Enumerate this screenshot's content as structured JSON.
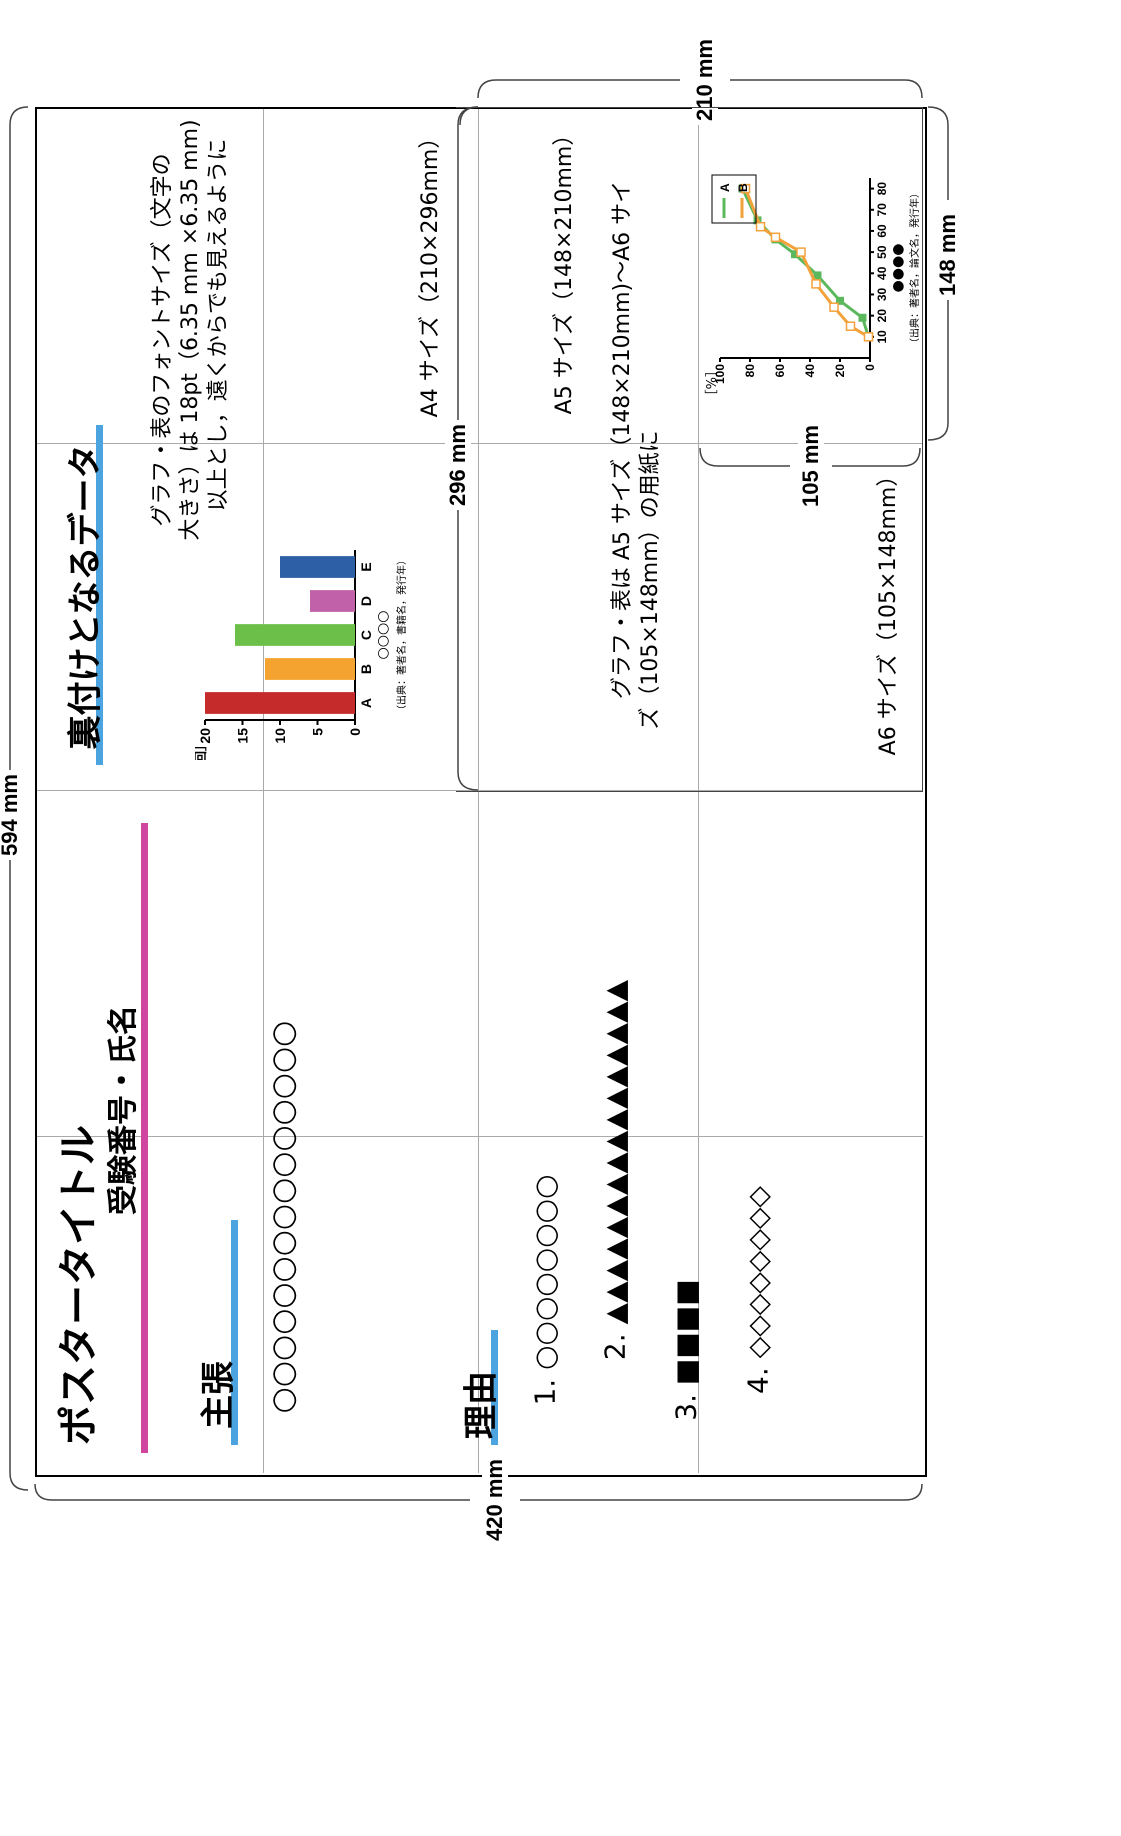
{
  "dimensions": {
    "poster_long": "420 mm",
    "poster_short": "594 mm",
    "a4_long": "296 mm",
    "a4_short": "210 mm",
    "a5_short": "148 mm",
    "a6_short": "105 mm"
  },
  "poster": {
    "title": "ポスタータイトル",
    "author": "受験番号・氏名",
    "claim_heading": "主張",
    "claim_text": "○○○○○○○○○○○○○○○",
    "reason_heading": "理由",
    "reasons": [
      "1.  ○○○○○○○○",
      "2.  ▲▲▲▲▲▲▲▲▲▲▲▲▲▲▲▲",
      "3.  ■■■■",
      "4.  ◇◇◇◇◇◇◇◇"
    ],
    "data_heading": "裏付けとなるデータ",
    "font_note": [
      "グラフ・表のフォントサイズ（文字の",
      "大きさ）は 18pt（6.35 mm ×6.35 mm)",
      "以上とし，遠くからでも見えるように"
    ],
    "a4_label": "A4 サイズ（210×296mm）",
    "a5_label": "A5 サイズ（148×210mm）",
    "a5_note": [
      "グラフ・表は A5 サイズ（148×210mm)～A6 サイ",
      "ズ（105×148mm）の用紙に"
    ],
    "a6_label": "A6 サイズ（105×148mm）"
  },
  "chart_data": [
    {
      "type": "bar",
      "categories": [
        "A",
        "B",
        "C",
        "D",
        "E"
      ],
      "values": [
        20,
        12,
        16,
        6,
        10
      ],
      "colors": [
        "#c62b2b",
        "#f4a330",
        "#6cc04a",
        "#c061a9",
        "#2d5fa6"
      ],
      "ylabel": "■■■■［回］",
      "xlabel": "○○○○",
      "yticks": [
        "0",
        "5",
        "10",
        "15",
        "20"
      ],
      "ylim": [
        0,
        20
      ],
      "source": "（出典：著者名，書籍名，発行年）"
    },
    {
      "type": "line",
      "ylabel": "□□□□［%］",
      "xlabel": "●●●●",
      "yticks": [
        "0",
        "20",
        "40",
        "60",
        "80",
        "100"
      ],
      "xticks": [
        "10",
        "20",
        "30",
        "40",
        "50",
        "60",
        "70",
        "80"
      ],
      "series": [
        {
          "name": "A",
          "color": "#5cb85c",
          "marker": "square",
          "x": [
            10,
            19,
            27,
            39,
            49,
            56,
            65,
            80
          ],
          "y": [
            1,
            5,
            20,
            35,
            50,
            63,
            75,
            85
          ]
        },
        {
          "name": "B",
          "color": "#f3a13a",
          "marker": "open-square",
          "x": [
            10,
            15,
            24,
            35,
            50,
            57,
            62,
            80
          ],
          "y": [
            1,
            13,
            24,
            36,
            46,
            63,
            73,
            83
          ]
        }
      ],
      "source": "（出典：著者名，論文名，発行年）"
    }
  ]
}
